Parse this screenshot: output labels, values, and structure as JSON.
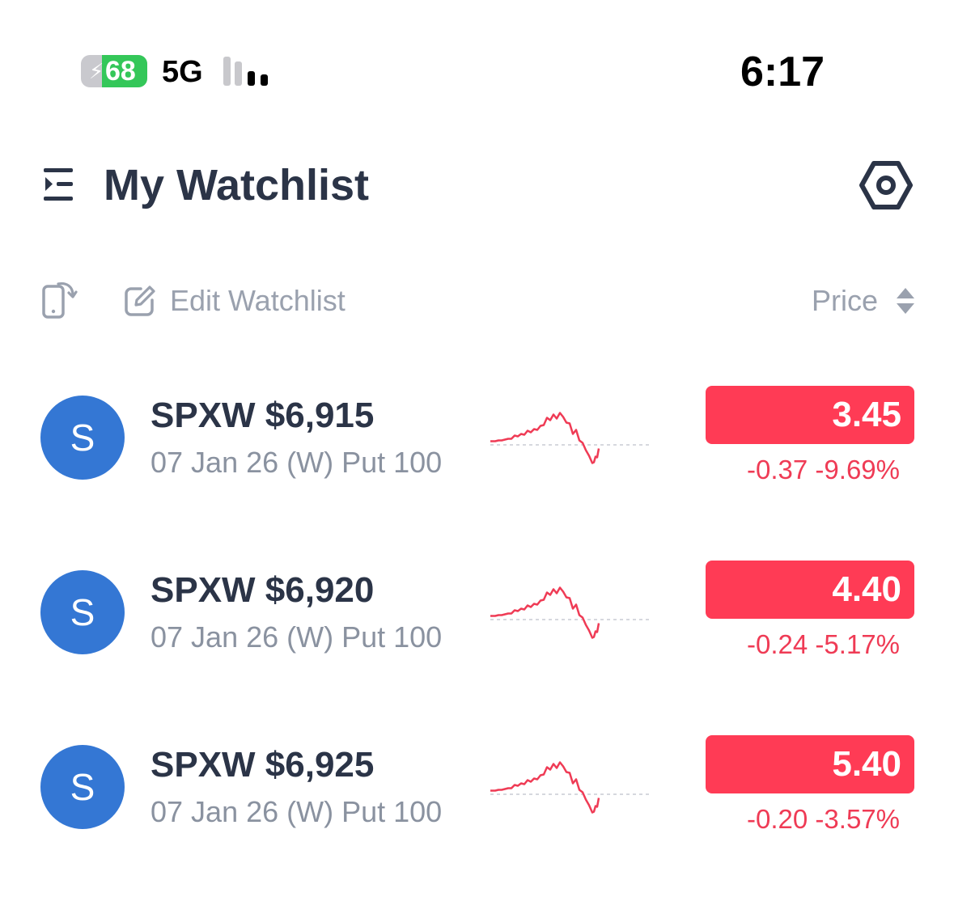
{
  "status_bar": {
    "battery_level": "68",
    "network": "5G",
    "time": "6:17"
  },
  "header": {
    "title": "My Watchlist"
  },
  "toolbar": {
    "edit_label": "Edit Watchlist",
    "sort_label": "Price"
  },
  "colors": {
    "accent_red": "#ff3b55",
    "avatar_blue": "#3477d4",
    "title_dark": "#2b3447",
    "muted_gray": "#9aa1ae"
  },
  "watchlist": [
    {
      "avatar": "S",
      "symbol": "SPXW $6,915",
      "description": "07 Jan 26 (W) Put 100",
      "price": "3.45",
      "change": "-0.37 -9.69%"
    },
    {
      "avatar": "S",
      "symbol": "SPXW $6,920",
      "description": "07 Jan 26 (W) Put 100",
      "price": "4.40",
      "change": "-0.24 -5.17%"
    },
    {
      "avatar": "S",
      "symbol": "SPXW $6,925",
      "description": "07 Jan 26 (W) Put 100",
      "price": "5.40",
      "change": "-0.20 -3.57%"
    }
  ]
}
